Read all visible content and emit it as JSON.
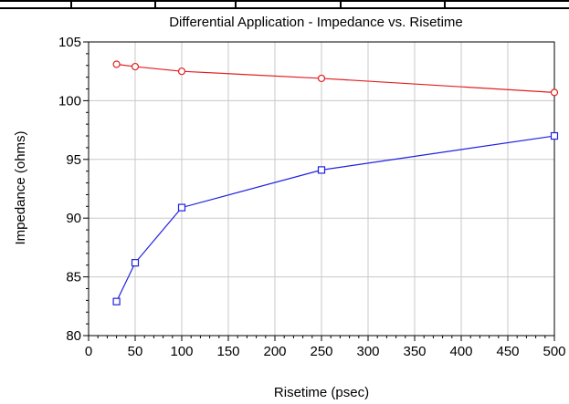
{
  "chart_data": {
    "type": "line",
    "title": "Differential Application - Impedance vs. Risetime",
    "xlabel": "Risetime (psec)",
    "ylabel": "Impedance (ohms)",
    "xlim": [
      0,
      500
    ],
    "ylim": [
      80,
      105
    ],
    "xticks": [
      0,
      50,
      100,
      150,
      200,
      250,
      300,
      350,
      400,
      450,
      500
    ],
    "yticks": [
      80,
      85,
      90,
      95,
      100,
      105
    ],
    "grid": true,
    "legend": "none",
    "series": [
      {
        "color": "#e02020",
        "marker": "circle",
        "points": [
          [
            30,
            103.1
          ],
          [
            50,
            102.9
          ],
          [
            100,
            102.5
          ],
          [
            250,
            101.9
          ],
          [
            500,
            100.7
          ]
        ]
      },
      {
        "color": "#2020e0",
        "marker": "square",
        "points": [
          [
            30,
            82.9
          ],
          [
            50,
            86.2
          ],
          [
            100,
            90.9
          ],
          [
            250,
            94.1
          ],
          [
            500,
            97.0
          ]
        ]
      }
    ]
  }
}
